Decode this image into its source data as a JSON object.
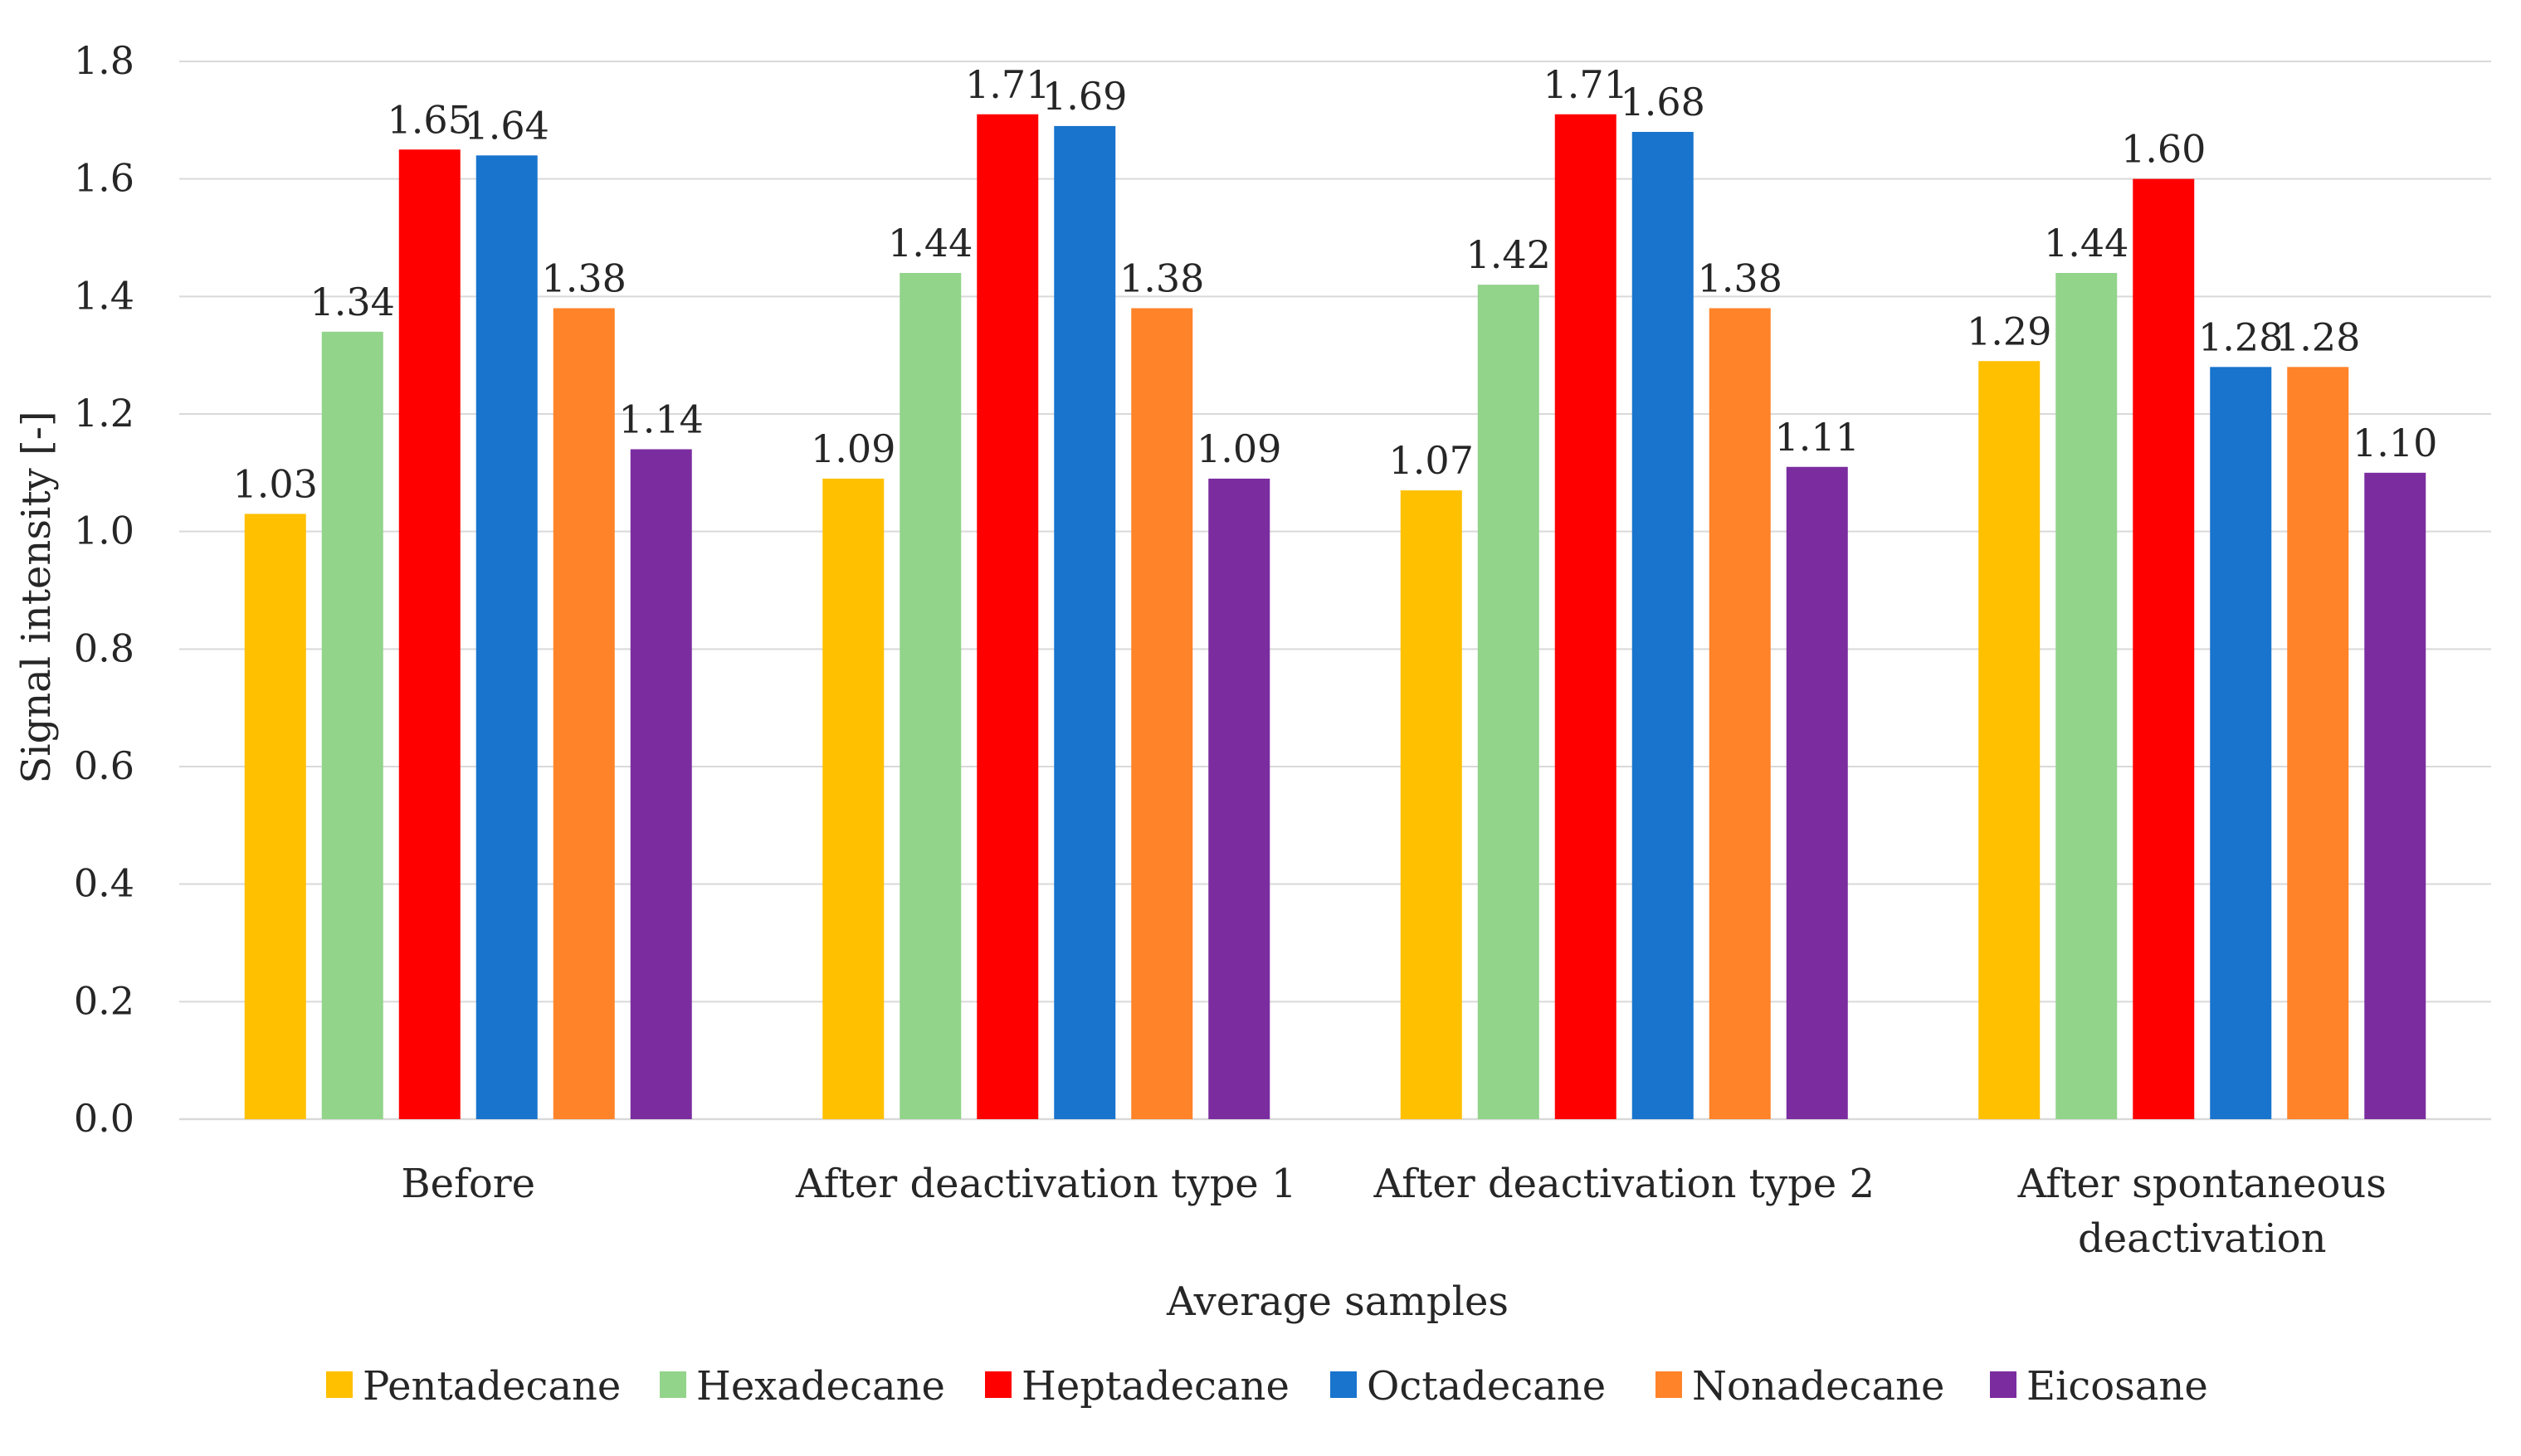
{
  "chart_data": {
    "type": "bar",
    "title": "",
    "xlabel": "Average samples",
    "ylabel": "Signal intensity [-]",
    "ylim": [
      0,
      1.8
    ],
    "yticks": [
      "0.0",
      "0.2",
      "0.4",
      "0.6",
      "0.8",
      "1.0",
      "1.2",
      "1.4",
      "1.6",
      "1.8"
    ],
    "grid": true,
    "legend_position": "bottom",
    "categories": [
      [
        "Before"
      ],
      [
        "After deactivation type 1"
      ],
      [
        "After deactivation type 2"
      ],
      [
        "After spontaneous",
        "deactivation"
      ]
    ],
    "series": [
      {
        "name": "Pentadecane",
        "color": "#FFC000",
        "values": [
          1.03,
          1.09,
          1.07,
          1.29
        ],
        "labels": [
          "1.03",
          "1.09",
          "1.07",
          "1.29"
        ]
      },
      {
        "name": "Hexadecane",
        "color": "#92D48A",
        "values": [
          1.34,
          1.44,
          1.42,
          1.44
        ],
        "labels": [
          "1.34",
          "1.44",
          "1.42",
          "1.44"
        ]
      },
      {
        "name": "Heptadecane",
        "color": "#FF0000",
        "values": [
          1.65,
          1.71,
          1.71,
          1.6
        ],
        "labels": [
          "1.65",
          "1.71",
          "1.71",
          "1.60"
        ]
      },
      {
        "name": "Octadecane",
        "color": "#1874CD",
        "values": [
          1.64,
          1.69,
          1.68,
          1.28
        ],
        "labels": [
          "1.64",
          "1.69",
          "1.68",
          "1.28"
        ]
      },
      {
        "name": "Nonadecane",
        "color": "#FF8329",
        "values": [
          1.38,
          1.38,
          1.38,
          1.28
        ],
        "labels": [
          "1.38",
          "1.38",
          "1.38",
          "1.28"
        ]
      },
      {
        "name": "Eicosane",
        "color": "#7B2DA0",
        "values": [
          1.14,
          1.09,
          1.11,
          1.1
        ],
        "labels": [
          "1.14",
          "1.09",
          "1.11",
          "1.10"
        ]
      }
    ]
  }
}
